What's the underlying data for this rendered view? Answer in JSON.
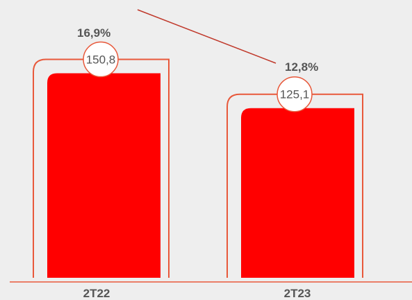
{
  "chart_data": {
    "type": "bar",
    "categories": [
      "2T22",
      "2T23"
    ],
    "values": [
      150.8,
      125.1
    ],
    "value_labels": [
      "150,8",
      "125,1"
    ],
    "ratio_labels": [
      "16,9%",
      "12,8%"
    ],
    "ratio_values": [
      16.9,
      12.8
    ],
    "ylim": [
      0,
      190
    ],
    "grid": false,
    "title": "",
    "xlabel": "",
    "ylabel": ""
  },
  "colors": {
    "bar": "#ff0000",
    "outline": "#e8583a",
    "trend_line": "#c0392b",
    "baseline": "#e8583a",
    "label_text": "#555555",
    "background": "#eeeeee"
  }
}
